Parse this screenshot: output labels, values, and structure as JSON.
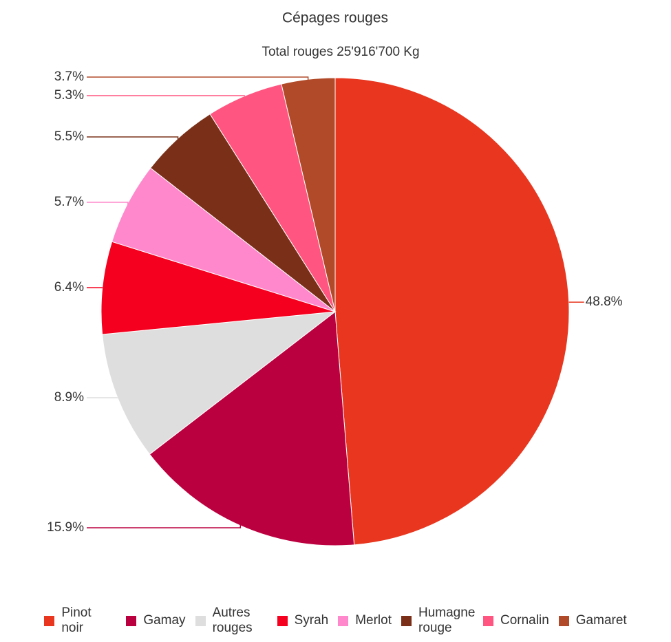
{
  "chart_data": {
    "type": "pie",
    "title": "Cépages rouges",
    "subtitle": "Total rouges 25'916'700 Kg",
    "categories": [
      "Pinot noir",
      "Gamay",
      "Autres rouges",
      "Syrah",
      "Merlot",
      "Humagne rouge",
      "Cornalin",
      "Gamaret"
    ],
    "values": [
      48.8,
      15.9,
      8.9,
      6.4,
      5.7,
      5.5,
      5.3,
      3.7
    ],
    "value_labels": [
      "48.8%",
      "15.9%",
      "8.9%",
      "6.4%",
      "5.7%",
      "5.5%",
      "5.3%",
      "3.7%"
    ],
    "colors": [
      "#e8361f",
      "#bb0040",
      "#dedede",
      "#f5001e",
      "#ff88cc",
      "#7a3018",
      "#ff5580",
      "#b04a28"
    ],
    "legend": "bottom"
  }
}
